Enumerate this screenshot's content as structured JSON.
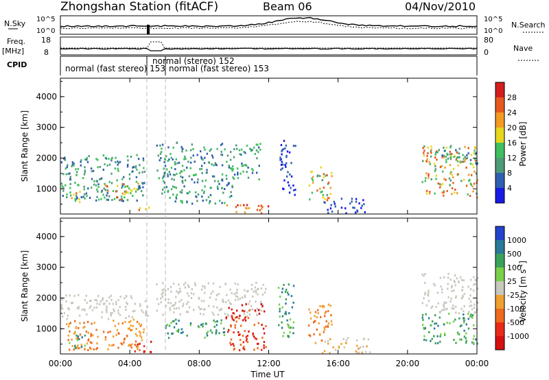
{
  "header": {
    "station": "Zhongshan Station (fitACF)",
    "beam": "Beam 06",
    "date": "04/Nov/2010"
  },
  "strips": {
    "nsky_label": "N.Sky",
    "nsky_ticks": [
      "10^5",
      "10^0"
    ],
    "nsearch_label": "N.Search",
    "nsearch_ticks": [
      "10^5",
      "10^0"
    ],
    "freq_label_1": "Freq.",
    "freq_label_2": "[MHz]",
    "freq_ticks": [
      "18",
      "8"
    ],
    "nave_label": "Nave",
    "nave_ticks": [
      "80",
      "0"
    ],
    "cpid_label": "CPID",
    "cpid_modes": [
      "normal (fast stereo) 153",
      "normal (stereo) 152",
      "normal (fast stereo) 153"
    ]
  },
  "chart_data": [
    {
      "type": "heatmap",
      "panel": "power",
      "ylabel": "Slant Range [km]",
      "xlabel": "",
      "ylim": [
        180,
        4600
      ],
      "y_ticks": [
        "1000",
        "2000",
        "3000",
        "4000"
      ],
      "colorbar_label": "Power [dB]",
      "colorbar_ticks": [
        "4",
        "8",
        "12",
        "16",
        "20",
        "24",
        "28"
      ],
      "colors": [
        "#1a1ae6",
        "#2f5fb0",
        "#4f9a78",
        "#3fbf5f",
        "#e6d61e",
        "#f29a22",
        "#e8581e",
        "#d41e1e"
      ],
      "echo_regions": [
        {
          "t_start": 0.0,
          "t_end": 4.9,
          "range_min": 600,
          "range_max": 2100,
          "level": "medium"
        },
        {
          "t_start": 0.5,
          "t_end": 1.1,
          "range_min": 500,
          "range_max": 1000,
          "level": "high"
        },
        {
          "t_start": 2.5,
          "t_end": 4.5,
          "range_min": 600,
          "range_max": 1200,
          "level": "high"
        },
        {
          "t_start": 4.4,
          "t_end": 5.2,
          "range_min": 200,
          "range_max": 400,
          "level": "high"
        },
        {
          "t_start": 5.5,
          "t_end": 11.5,
          "range_min": 1300,
          "range_max": 2500,
          "level": "medium"
        },
        {
          "t_start": 5.8,
          "t_end": 10.0,
          "range_min": 500,
          "range_max": 1300,
          "level": "medium"
        },
        {
          "t_start": 9.5,
          "t_end": 12.0,
          "range_min": 200,
          "range_max": 500,
          "level": "very-high"
        },
        {
          "t_start": 12.6,
          "t_end": 13.5,
          "range_min": 800,
          "range_max": 2600,
          "level": "low"
        },
        {
          "t_start": 14.3,
          "t_end": 15.6,
          "range_min": 600,
          "range_max": 1700,
          "level": "high"
        },
        {
          "t_start": 15.0,
          "t_end": 17.5,
          "range_min": 200,
          "range_max": 700,
          "level": "low"
        },
        {
          "t_start": 20.8,
          "t_end": 24.0,
          "range_min": 700,
          "range_max": 2400,
          "level": "high"
        },
        {
          "t_start": 21.5,
          "t_end": 24.0,
          "range_min": 1800,
          "range_max": 2300,
          "level": "medium"
        }
      ]
    },
    {
      "type": "heatmap",
      "panel": "velocity",
      "ylabel": "Slant Range [km]",
      "xlabel": "Time UT",
      "ylim": [
        180,
        4600
      ],
      "x_ticks": [
        "00:00",
        "04:00",
        "08:00",
        "12:00",
        "16:00",
        "20:00",
        "00:00"
      ],
      "y_ticks": [
        "1000",
        "2000",
        "3000",
        "4000"
      ],
      "colorbar_label": "Velocity [m s",
      "colorbar_label_exp": "-1",
      "colorbar_label_end": "]",
      "colorbar_ticks": [
        "1000",
        "500",
        "100",
        "25",
        "-25",
        "-100",
        "-500",
        "-1000"
      ],
      "colors": [
        "#2244cc",
        "#2a7a99",
        "#3aa35a",
        "#7ad04a",
        "#c8c8be",
        "#f0a030",
        "#ef6a1c",
        "#e82a18",
        "#d61010"
      ],
      "echo_regions": [
        {
          "t_start": 0.0,
          "t_end": 5.0,
          "range_min": 1300,
          "range_max": 2100,
          "level": "ground"
        },
        {
          "t_start": 0.2,
          "t_end": 4.8,
          "range_min": 300,
          "range_max": 1300,
          "level": "away-moderate"
        },
        {
          "t_start": 0.4,
          "t_end": 1.4,
          "range_min": 300,
          "range_max": 800,
          "level": "toward-moderate"
        },
        {
          "t_start": 4.2,
          "t_end": 5.2,
          "range_min": 200,
          "range_max": 600,
          "level": "away-strong"
        },
        {
          "t_start": 5.5,
          "t_end": 11.8,
          "range_min": 1400,
          "range_max": 2500,
          "level": "ground"
        },
        {
          "t_start": 6.0,
          "t_end": 9.5,
          "range_min": 700,
          "range_max": 1300,
          "level": "toward-moderate"
        },
        {
          "t_start": 9.5,
          "t_end": 11.8,
          "range_min": 300,
          "range_max": 1800,
          "level": "away-strong"
        },
        {
          "t_start": 12.5,
          "t_end": 13.5,
          "range_min": 700,
          "range_max": 2500,
          "level": "toward-moderate"
        },
        {
          "t_start": 14.2,
          "t_end": 15.6,
          "range_min": 500,
          "range_max": 1800,
          "level": "away-moderate"
        },
        {
          "t_start": 15.0,
          "t_end": 17.8,
          "range_min": 200,
          "range_max": 700,
          "level": "away-weak"
        },
        {
          "t_start": 20.8,
          "t_end": 24.0,
          "range_min": 1500,
          "range_max": 2800,
          "level": "ground"
        },
        {
          "t_start": 20.8,
          "t_end": 24.0,
          "range_min": 500,
          "range_max": 1500,
          "level": "toward-moderate"
        }
      ]
    }
  ]
}
